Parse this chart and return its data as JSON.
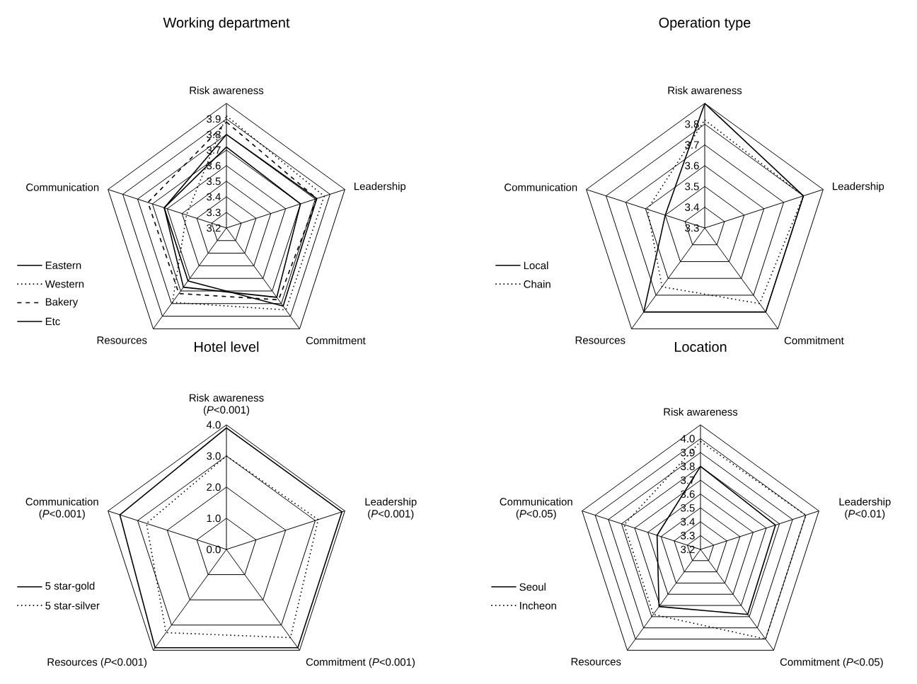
{
  "chart_data": [
    {
      "type": "radar",
      "title": "Working department",
      "categories": [
        "Risk awareness",
        "Leadership",
        "Commitment",
        "Resources",
        "Communication"
      ],
      "ylim": [
        3.2,
        4.0
      ],
      "yticks": [
        3.2,
        3.3,
        3.4,
        3.5,
        3.6,
        3.7,
        3.8,
        3.9
      ],
      "grid": true,
      "legend": "bottom left",
      "series": [
        {
          "name": "Eastern",
          "color": "#000000",
          "line_style": "solid",
          "values": [
            3.8,
            3.81,
            3.82,
            3.62,
            3.62
          ]
        },
        {
          "name": "Western",
          "color": "#000000",
          "line_style": "dotted",
          "values": [
            3.92,
            3.86,
            3.85,
            3.79,
            3.47
          ]
        },
        {
          "name": "Bakery",
          "color": "#000000",
          "line_style": "dashed",
          "values": [
            3.88,
            3.81,
            3.77,
            3.72,
            3.73
          ]
        },
        {
          "name": "Etc",
          "color": "#000000",
          "line_style": "solid",
          "values": [
            3.72,
            3.7,
            3.75,
            3.67,
            3.62
          ]
        }
      ]
    },
    {
      "type": "radar",
      "title": "Operation type",
      "categories": [
        "Risk awareness",
        "Leadership",
        "Commitment",
        "Resources",
        "Communication"
      ],
      "ylim": [
        3.3,
        3.9
      ],
      "yticks": [
        3.3,
        3.4,
        3.5,
        3.6,
        3.7,
        3.8
      ],
      "grid": true,
      "legend": "bottom left",
      "series": [
        {
          "name": "Local",
          "color": "#000000",
          "line_style": "solid",
          "values": [
            3.9,
            3.8,
            3.8,
            3.8,
            3.5
          ]
        },
        {
          "name": "Chain",
          "color": "#000000",
          "line_style": "dotted",
          "values": [
            3.82,
            3.8,
            3.75,
            3.65,
            3.59
          ]
        }
      ]
    },
    {
      "type": "radar",
      "title": "Hotel level",
      "categories": [
        "Risk awareness (*P*<0.001)",
        "Leadership (*P*<0.001)",
        "Commitment (*P*<0.001)",
        "Resources (*P*<0.001)",
        "Communication (*P*<0.001)"
      ],
      "ylim": [
        0,
        4
      ],
      "yticks": [
        {
          "value": 0,
          "label": "0.0"
        },
        {
          "value": 1,
          "label": "1.0"
        },
        {
          "value": 2,
          "label": "2.0"
        },
        {
          "value": 3,
          "label": "3.0"
        },
        {
          "value": 4,
          "label": "4.0"
        }
      ],
      "grid": true,
      "legend": "bottom left",
      "series": [
        {
          "name": "5 star-gold",
          "color": "#000000",
          "line_style": "solid",
          "values": [
            3.9,
            3.9,
            3.9,
            3.9,
            3.6
          ]
        },
        {
          "name": "5 star-silver",
          "color": "#000000",
          "line_style": "dotted",
          "values": [
            3.0,
            3.1,
            3.5,
            3.3,
            2.7
          ]
        }
      ]
    },
    {
      "type": "radar",
      "title": "Location",
      "categories": [
        "Risk awareness",
        "Leadership (*P*<0.01)",
        "Commitment (*P*<0.05)",
        "Resources",
        "Communication (*P*<0.05)"
      ],
      "ylim": [
        3.2,
        4.1
      ],
      "yticks": [
        3.2,
        3.3,
        3.4,
        3.5,
        3.6,
        3.7,
        3.8,
        3.9,
        {
          "value": 4,
          "label": "4.0"
        }
      ],
      "grid": true,
      "legend": "bottom left",
      "series": [
        {
          "name": "Seoul",
          "color": "#000000",
          "line_style": "solid",
          "values": [
            3.8,
            3.77,
            3.78,
            3.71,
            3.53
          ]
        },
        {
          "name": "Incheon",
          "color": "#000000",
          "line_style": "dotted",
          "values": [
            3.98,
            4.0,
            4.0,
            3.78,
            3.78
          ]
        }
      ]
    }
  ]
}
